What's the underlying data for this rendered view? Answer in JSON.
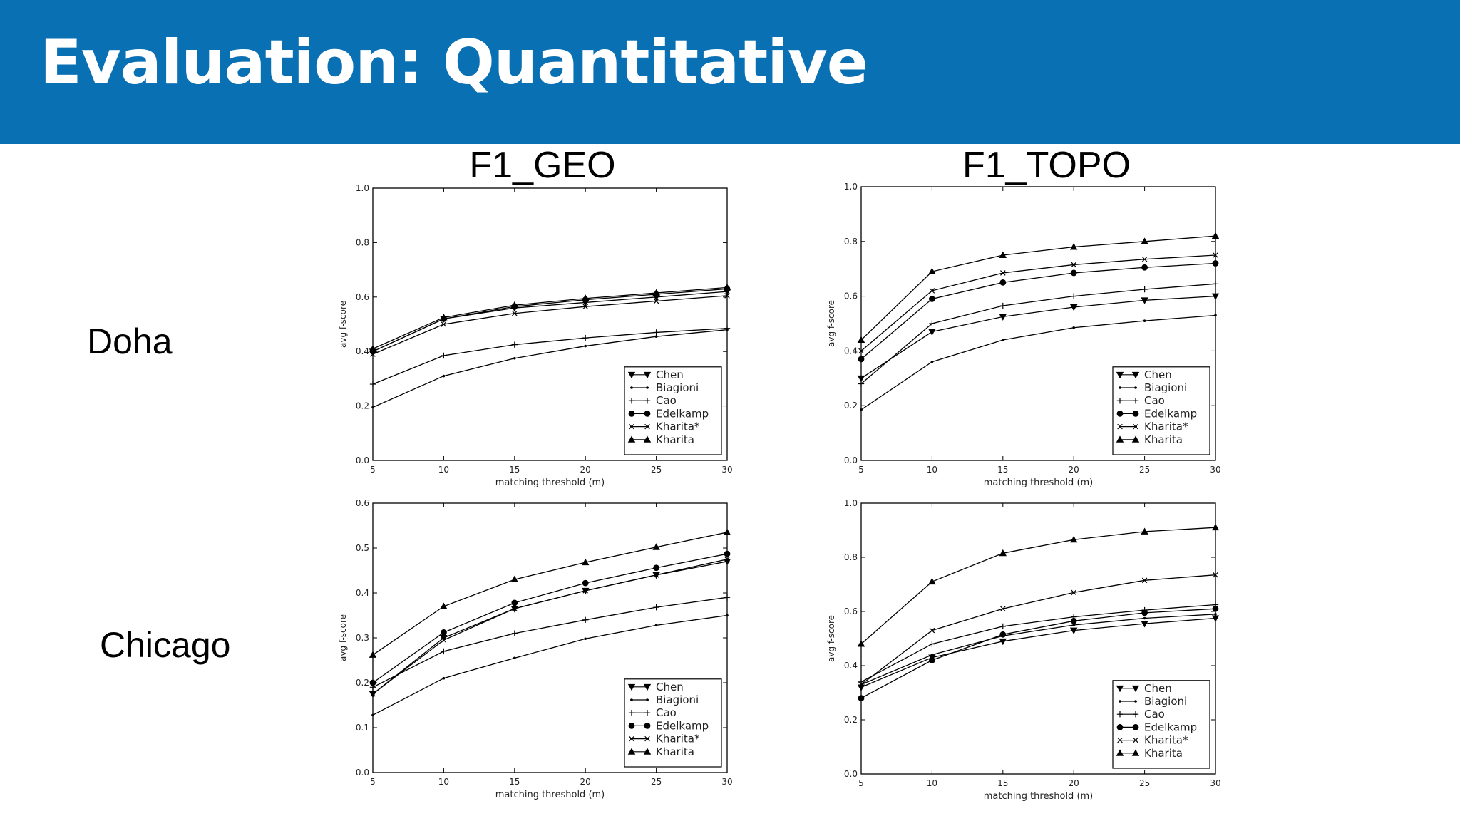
{
  "slide": {
    "title": "Evaluation: Quantitative",
    "columns": [
      "F1_GEO",
      "F1_TOPO"
    ],
    "rows": [
      "Doha",
      "Chicago"
    ]
  },
  "colors": {
    "banner": "#0a70b4",
    "title": "#ffffff"
  },
  "chart_data": [
    {
      "type": "line",
      "title": "",
      "xlabel": "matching threshold (m)",
      "ylabel": "avg f-score",
      "x": [
        5,
        10,
        15,
        20,
        25,
        30
      ],
      "xlim": [
        5,
        30
      ],
      "ylim": [
        0,
        1.0
      ],
      "xticks": [
        5,
        10,
        15,
        20,
        25,
        30
      ],
      "yticks": [
        0.0,
        0.2,
        0.4,
        0.6,
        0.8,
        1.0
      ],
      "ytick_labels": [
        "0.0",
        "0.2",
        "0.4",
        "0.6",
        "0.8",
        "1.0"
      ],
      "legend_position": "lower-right",
      "grid": false,
      "series": [
        {
          "name": "Chen",
          "marker": "triangle-down",
          "values": [
            0.4,
            0.52,
            0.56,
            0.58,
            0.6,
            0.62
          ]
        },
        {
          "name": "Biagioni",
          "marker": "point",
          "values": [
            0.195,
            0.31,
            0.375,
            0.42,
            0.455,
            0.48
          ]
        },
        {
          "name": "Cao",
          "marker": "plus",
          "values": [
            0.28,
            0.385,
            0.425,
            0.45,
            0.47,
            0.485
          ]
        },
        {
          "name": "Edelkamp",
          "marker": "circle",
          "values": [
            0.4,
            0.52,
            0.565,
            0.59,
            0.61,
            0.63
          ]
        },
        {
          "name": "Kharita*",
          "marker": "x",
          "values": [
            0.39,
            0.5,
            0.54,
            0.565,
            0.585,
            0.605
          ]
        },
        {
          "name": "Kharita",
          "marker": "triangle-up",
          "values": [
            0.41,
            0.525,
            0.57,
            0.595,
            0.615,
            0.635
          ]
        }
      ]
    },
    {
      "type": "line",
      "title": "",
      "xlabel": "matching threshold (m)",
      "ylabel": "avg f-score",
      "x": [
        5,
        10,
        15,
        20,
        25,
        30
      ],
      "xlim": [
        5,
        30
      ],
      "ylim": [
        0,
        1.0
      ],
      "xticks": [
        5,
        10,
        15,
        20,
        25,
        30
      ],
      "yticks": [
        0.0,
        0.2,
        0.4,
        0.6,
        0.8,
        1.0
      ],
      "ytick_labels": [
        "0.0",
        "0.2",
        "0.4",
        "0.6",
        "0.8",
        "1.0"
      ],
      "legend_position": "lower-right",
      "grid": false,
      "series": [
        {
          "name": "Chen",
          "marker": "triangle-down",
          "values": [
            0.3,
            0.47,
            0.525,
            0.56,
            0.585,
            0.6
          ]
        },
        {
          "name": "Biagioni",
          "marker": "point",
          "values": [
            0.185,
            0.36,
            0.44,
            0.485,
            0.51,
            0.53
          ]
        },
        {
          "name": "Cao",
          "marker": "plus",
          "values": [
            0.28,
            0.5,
            0.565,
            0.6,
            0.625,
            0.645
          ]
        },
        {
          "name": "Edelkamp",
          "marker": "circle",
          "values": [
            0.37,
            0.59,
            0.65,
            0.685,
            0.705,
            0.72
          ]
        },
        {
          "name": "Kharita*",
          "marker": "x",
          "values": [
            0.4,
            0.62,
            0.685,
            0.715,
            0.735,
            0.75
          ]
        },
        {
          "name": "Kharita",
          "marker": "triangle-up",
          "values": [
            0.44,
            0.69,
            0.75,
            0.78,
            0.8,
            0.82
          ]
        }
      ]
    },
    {
      "type": "line",
      "title": "",
      "xlabel": "matching threshold (m)",
      "ylabel": "avg f-score",
      "x": [
        5,
        10,
        15,
        20,
        25,
        30
      ],
      "xlim": [
        5,
        30
      ],
      "ylim": [
        0,
        0.6
      ],
      "xticks": [
        5,
        10,
        15,
        20,
        25,
        30
      ],
      "yticks": [
        0.0,
        0.1,
        0.2,
        0.3,
        0.4,
        0.5,
        0.6
      ],
      "ytick_labels": [
        "0.0",
        "0.1",
        "0.2",
        "0.3",
        "0.4",
        "0.5",
        "0.6"
      ],
      "legend_position": "lower-right",
      "grid": false,
      "series": [
        {
          "name": "Chen",
          "marker": "triangle-down",
          "values": [
            0.175,
            0.3,
            0.365,
            0.405,
            0.44,
            0.47
          ]
        },
        {
          "name": "Biagioni",
          "marker": "point",
          "values": [
            0.128,
            0.21,
            0.255,
            0.298,
            0.328,
            0.35
          ]
        },
        {
          "name": "Cao",
          "marker": "plus",
          "values": [
            0.19,
            0.27,
            0.31,
            0.34,
            0.368,
            0.39
          ]
        },
        {
          "name": "Edelkamp",
          "marker": "circle",
          "values": [
            0.2,
            0.312,
            0.378,
            0.422,
            0.456,
            0.487
          ]
        },
        {
          "name": "Kharita*",
          "marker": "x",
          "values": [
            0.175,
            0.295,
            0.365,
            0.405,
            0.44,
            0.475
          ]
        },
        {
          "name": "Kharita",
          "marker": "triangle-up",
          "values": [
            0.262,
            0.37,
            0.43,
            0.468,
            0.502,
            0.535
          ]
        }
      ]
    },
    {
      "type": "line",
      "title": "",
      "xlabel": "matching threshold (m)",
      "ylabel": "avg f-score",
      "x": [
        5,
        10,
        15,
        20,
        25,
        30
      ],
      "xlim": [
        5,
        30
      ],
      "ylim": [
        0,
        1.0
      ],
      "xticks": [
        5,
        10,
        15,
        20,
        25,
        30
      ],
      "yticks": [
        0.0,
        0.2,
        0.4,
        0.6,
        0.8,
        1.0
      ],
      "ytick_labels": [
        "0.0",
        "0.2",
        "0.4",
        "0.6",
        "0.8",
        "1.0"
      ],
      "legend_position": "lower-right",
      "grid": false,
      "series": [
        {
          "name": "Chen",
          "marker": "triangle-down",
          "values": [
            0.32,
            0.43,
            0.49,
            0.53,
            0.555,
            0.575
          ]
        },
        {
          "name": "Biagioni",
          "marker": "point",
          "values": [
            0.33,
            0.44,
            0.51,
            0.55,
            0.575,
            0.59
          ]
        },
        {
          "name": "Cao",
          "marker": "plus",
          "values": [
            0.34,
            0.48,
            0.545,
            0.58,
            0.605,
            0.625
          ]
        },
        {
          "name": "Edelkamp",
          "marker": "circle",
          "values": [
            0.28,
            0.42,
            0.515,
            0.565,
            0.595,
            0.61
          ]
        },
        {
          "name": "Kharita*",
          "marker": "x",
          "values": [
            0.33,
            0.53,
            0.61,
            0.67,
            0.715,
            0.735
          ]
        },
        {
          "name": "Kharita",
          "marker": "triangle-up",
          "values": [
            0.48,
            0.71,
            0.815,
            0.865,
            0.895,
            0.91
          ]
        }
      ]
    }
  ]
}
